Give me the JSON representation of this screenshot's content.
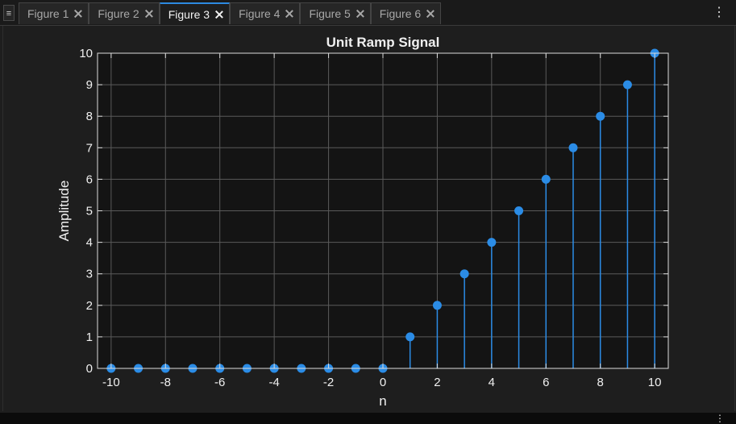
{
  "tabbar": {
    "tabs": [
      {
        "label": "Figure 1",
        "active": false
      },
      {
        "label": "Figure 2",
        "active": false
      },
      {
        "label": "Figure 3",
        "active": true
      },
      {
        "label": "Figure 4",
        "active": false
      },
      {
        "label": "Figure 5",
        "active": false
      },
      {
        "label": "Figure 6",
        "active": false
      }
    ],
    "menu_icon": "list-icon",
    "more_icon": "kebab-icon"
  },
  "colors": {
    "accent": "#2d8ae0",
    "stem": "#2b8ce6",
    "plot_bg": "#141414",
    "grid": "#5a5a5a",
    "axis": "#dcdcdc"
  },
  "chart_data": {
    "type": "stem",
    "title": "Unit Ramp Signal",
    "xlabel": "n",
    "ylabel": "Amplitude",
    "xlim": [
      -10.5,
      10.5
    ],
    "ylim": [
      0,
      10
    ],
    "xticks": [
      -10,
      -8,
      -6,
      -4,
      -2,
      0,
      2,
      4,
      6,
      8,
      10
    ],
    "yticks": [
      0,
      1,
      2,
      3,
      4,
      5,
      6,
      7,
      8,
      9,
      10
    ],
    "grid": true,
    "x": [
      -10,
      -9,
      -8,
      -7,
      -6,
      -5,
      -4,
      -3,
      -2,
      -1,
      0,
      1,
      2,
      3,
      4,
      5,
      6,
      7,
      8,
      9,
      10
    ],
    "y": [
      0,
      0,
      0,
      0,
      0,
      0,
      0,
      0,
      0,
      0,
      0,
      1,
      2,
      3,
      4,
      5,
      6,
      7,
      8,
      9,
      10
    ]
  }
}
